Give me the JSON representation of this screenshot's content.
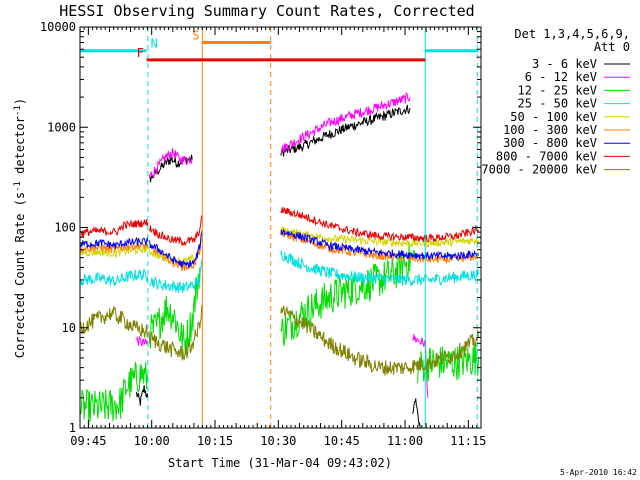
{
  "chart_data": {
    "type": "line",
    "title": "HESSI Observing Summary Count Rates, Corrected",
    "xlabel": "Start Time (31-Mar-04 09:43:02)",
    "ylabel": "Corrected Count Rate (s^-1 detector^-1)",
    "ylabel_main": "Corrected Count Rate (s",
    "ylabel_sup1": "-1",
    "ylabel_mid": " detector",
    "ylabel_sup2": "-1",
    "ylabel_end": ")",
    "yscale": "log",
    "ylim": [
      1,
      10000
    ],
    "xlim": [
      9.717,
      11.3
    ],
    "xticks": [
      {
        "t": 9.75,
        "label": "09:45"
      },
      {
        "t": 10.0,
        "label": "10:00"
      },
      {
        "t": 10.25,
        "label": "10:15"
      },
      {
        "t": 10.5,
        "label": "10:30"
      },
      {
        "t": 10.75,
        "label": "10:45"
      },
      {
        "t": 11.0,
        "label": "11:00"
      },
      {
        "t": 11.25,
        "label": "11:15"
      }
    ],
    "yticks": [
      {
        "v": 1,
        "label": "1"
      },
      {
        "v": 10,
        "label": "10"
      },
      {
        "v": 100,
        "label": "100"
      },
      {
        "v": 1000,
        "label": "1000"
      },
      {
        "v": 10000,
        "label": "10000"
      }
    ],
    "legend": {
      "header1": "Det 1,3,4,5,6,9,",
      "header2": "Att 0",
      "position": "right"
    },
    "flag_bars": [
      {
        "label": "N",
        "color": "#00e0e0",
        "segments": [
          [
            9.717,
            9.98
          ],
          [
            11.08,
            11.29
          ]
        ],
        "y": 5800
      },
      {
        "label": "S",
        "color": "#ff7f00",
        "segments": [
          [
            10.2,
            10.47
          ]
        ],
        "y": 7000
      },
      {
        "label": "F",
        "color": "#ee0000",
        "segments": [
          [
            9.98,
            11.08
          ]
        ],
        "y": 4700
      }
    ],
    "flag_marks": [
      {
        "label": "N",
        "t": 10.01,
        "color": "#00e0e0"
      },
      {
        "label": "S",
        "t": 10.175,
        "color": "#ff7f00"
      },
      {
        "label": "F",
        "t": 9.955,
        "color": "#ee0000"
      }
    ],
    "vlines": [
      {
        "t": 9.717,
        "color": "#00e0e0",
        "dash": false
      },
      {
        "t": 9.985,
        "color": "#00e0e0",
        "dash": true
      },
      {
        "t": 10.2,
        "color": "#ff7f00",
        "dash": false
      },
      {
        "t": 10.47,
        "color": "#ff7f00",
        "dash": true
      },
      {
        "t": 11.08,
        "color": "#00e0e0",
        "dash": false
      },
      {
        "t": 11.285,
        "color": "#00e0e0",
        "dash": true
      }
    ],
    "gap": [
      10.2,
      10.51
    ],
    "series": [
      {
        "name": "3 - 6 keV",
        "color": "#000000",
        "noise": 0.05,
        "segments": [
          [
            [
              9.94,
              2.2
            ],
            [
              9.955,
              1.8
            ],
            [
              9.97,
              2.5
            ],
            [
              9.985,
              2.0
            ]
          ],
          [
            [
              9.99,
              300
            ],
            [
              10.03,
              380
            ],
            [
              10.06,
              450
            ],
            [
              10.08,
              480
            ],
            [
              10.1,
              440
            ],
            [
              10.13,
              470
            ],
            [
              10.16,
              480
            ]
          ],
          [
            [
              10.51,
              560
            ],
            [
              10.6,
              650
            ],
            [
              10.7,
              850
            ],
            [
              10.8,
              1050
            ],
            [
              10.9,
              1250
            ],
            [
              10.98,
              1450
            ],
            [
              11.02,
              1550
            ]
          ],
          [
            [
              11.03,
              1.3
            ],
            [
              11.04,
              2.0
            ],
            [
              11.06,
              1.0
            ]
          ]
        ]
      },
      {
        "name": "6 - 12 keV",
        "color": "#ff00ff",
        "noise": 0.05,
        "segments": [
          [
            [
              9.94,
              7.5
            ],
            [
              9.97,
              7.0
            ],
            [
              9.985,
              7.0
            ]
          ],
          [
            [
              9.99,
              320
            ],
            [
              10.03,
              420
            ],
            [
              10.06,
              520
            ],
            [
              10.085,
              560
            ],
            [
              10.11,
              480
            ],
            [
              10.14,
              470
            ],
            [
              10.16,
              490
            ]
          ],
          [
            [
              10.51,
              600
            ],
            [
              10.6,
              800
            ],
            [
              10.7,
              1100
            ],
            [
              10.8,
              1350
            ],
            [
              10.9,
              1600
            ],
            [
              10.98,
              1850
            ],
            [
              11.02,
              2000
            ]
          ],
          [
            [
              11.03,
              8
            ],
            [
              11.05,
              7.5
            ],
            [
              11.08,
              7.0
            ],
            [
              11.09,
              2.0
            ]
          ]
        ]
      },
      {
        "name": "12 - 25 keV",
        "color": "#00dd00",
        "noise": 0.18,
        "segments": [
          [
            [
              9.72,
              1.6
            ],
            [
              9.8,
              1.6
            ],
            [
              9.86,
              1.7
            ],
            [
              9.88,
              1.8
            ],
            [
              9.9,
              2.6
            ],
            [
              9.93,
              3.0
            ],
            [
              9.96,
              3.5
            ],
            [
              9.985,
              3.0
            ]
          ],
          [
            [
              9.99,
              9
            ],
            [
              10.02,
              10
            ],
            [
              10.04,
              13
            ],
            [
              10.06,
              16
            ],
            [
              10.09,
              13
            ],
            [
              10.11,
              9
            ],
            [
              10.13,
              7
            ],
            [
              10.16,
              12
            ],
            [
              10.19,
              40
            ]
          ],
          [
            [
              10.51,
              9
            ],
            [
              10.6,
              14
            ],
            [
              10.7,
              20
            ],
            [
              10.8,
              25
            ],
            [
              10.9,
              30
            ],
            [
              10.96,
              35
            ],
            [
              11.0,
              45
            ],
            [
              11.04,
              50
            ]
          ],
          [
            [
              11.05,
              4
            ],
            [
              11.1,
              4.5
            ],
            [
              11.2,
              4.5
            ],
            [
              11.29,
              5
            ]
          ]
        ]
      },
      {
        "name": "25 - 50 keV",
        "color": "#00e0e0",
        "noise": 0.06,
        "segments": [
          [
            [
              9.72,
              30
            ],
            [
              9.8,
              31
            ],
            [
              9.86,
              29
            ],
            [
              9.9,
              32
            ],
            [
              9.95,
              34
            ],
            [
              9.985,
              33
            ]
          ],
          [
            [
              9.99,
              30
            ],
            [
              10.03,
              27
            ],
            [
              10.08,
              26
            ],
            [
              10.13,
              25
            ],
            [
              10.17,
              27
            ],
            [
              10.19,
              30
            ],
            [
              10.2,
              48
            ]
          ],
          [
            [
              10.51,
              55
            ],
            [
              10.6,
              42
            ],
            [
              10.7,
              35
            ],
            [
              10.8,
              32
            ],
            [
              10.9,
              31
            ],
            [
              11.0,
              30
            ],
            [
              11.1,
              30
            ],
            [
              11.2,
              32
            ],
            [
              11.29,
              34
            ]
          ]
        ]
      },
      {
        "name": "50 - 100 keV",
        "color": "#d4d400",
        "noise": 0.04,
        "segments": [
          [
            [
              9.72,
              56
            ],
            [
              9.8,
              57
            ],
            [
              9.86,
              55
            ],
            [
              9.89,
              58
            ],
            [
              9.95,
              60
            ],
            [
              9.985,
              61
            ]
          ],
          [
            [
              9.99,
              58
            ],
            [
              10.03,
              52
            ],
            [
              10.08,
              48
            ],
            [
              10.13,
              46
            ],
            [
              10.17,
              49
            ],
            [
              10.19,
              62
            ],
            [
              10.2,
              85
            ]
          ],
          [
            [
              10.51,
              95
            ],
            [
              10.6,
              85
            ],
            [
              10.7,
              78
            ],
            [
              10.8,
              75
            ],
            [
              10.9,
              72
            ],
            [
              11.0,
              70
            ],
            [
              11.1,
              70
            ],
            [
              11.2,
              72
            ],
            [
              11.29,
              75
            ]
          ]
        ]
      },
      {
        "name": "100 - 300 keV",
        "color": "#ff7f00",
        "noise": 0.04,
        "segments": [
          [
            [
              9.72,
              62
            ],
            [
              9.8,
              63
            ],
            [
              9.86,
              60
            ],
            [
              9.89,
              64
            ],
            [
              9.95,
              66
            ],
            [
              9.985,
              66
            ]
          ],
          [
            [
              9.99,
              62
            ],
            [
              10.03,
              55
            ],
            [
              10.08,
              45
            ],
            [
              10.13,
              40
            ],
            [
              10.17,
              43
            ],
            [
              10.19,
              60
            ],
            [
              10.2,
              90
            ]
          ],
          [
            [
              10.51,
              88
            ],
            [
              10.6,
              75
            ],
            [
              10.7,
              62
            ],
            [
              10.8,
              56
            ],
            [
              10.9,
              52
            ],
            [
              11.0,
              50
            ],
            [
              11.1,
              48
            ],
            [
              11.2,
              48
            ],
            [
              11.29,
              52
            ]
          ]
        ]
      },
      {
        "name": "300 - 800 keV",
        "color": "#0000ff",
        "noise": 0.04,
        "segments": [
          [
            [
              9.72,
              68
            ],
            [
              9.8,
              70
            ],
            [
              9.86,
              66
            ],
            [
              9.89,
              70
            ],
            [
              9.95,
              72
            ],
            [
              9.985,
              72
            ]
          ],
          [
            [
              9.99,
              68
            ],
            [
              10.03,
              60
            ],
            [
              10.08,
              48
            ],
            [
              10.13,
              42
            ],
            [
              10.17,
              45
            ],
            [
              10.19,
              65
            ],
            [
              10.2,
              95
            ]
          ],
          [
            [
              10.51,
              92
            ],
            [
              10.6,
              80
            ],
            [
              10.7,
              66
            ],
            [
              10.8,
              60
            ],
            [
              10.9,
              56
            ],
            [
              11.0,
              54
            ],
            [
              11.1,
              52
            ],
            [
              11.2,
              52
            ],
            [
              11.29,
              55
            ]
          ]
        ]
      },
      {
        "name": "800 - 7000 keV",
        "color": "#ee0000",
        "noise": 0.04,
        "segments": [
          [
            [
              9.72,
              88
            ],
            [
              9.78,
              92
            ],
            [
              9.86,
              90
            ],
            [
              9.89,
              105
            ],
            [
              9.95,
              110
            ],
            [
              9.985,
              112
            ]
          ],
          [
            [
              9.99,
              100
            ],
            [
              10.03,
              85
            ],
            [
              10.08,
              75
            ],
            [
              10.13,
              72
            ],
            [
              10.17,
              75
            ],
            [
              10.19,
              95
            ],
            [
              10.2,
              130
            ]
          ],
          [
            [
              10.51,
              150
            ],
            [
              10.6,
              130
            ],
            [
              10.7,
              105
            ],
            [
              10.8,
              90
            ],
            [
              10.9,
              82
            ],
            [
              11.0,
              80
            ],
            [
              11.1,
              78
            ],
            [
              11.2,
              82
            ],
            [
              11.29,
              95
            ]
          ]
        ]
      },
      {
        "name": "7000 - 20000 keV",
        "color": "#808000",
        "noise": 0.08,
        "segments": [
          [
            [
              9.72,
              10
            ],
            [
              9.78,
              12
            ],
            [
              9.84,
              14
            ],
            [
              9.89,
              12
            ],
            [
              9.93,
              10
            ],
            [
              9.985,
              9
            ]
          ],
          [
            [
              9.99,
              8
            ],
            [
              10.03,
              7
            ],
            [
              10.08,
              6
            ],
            [
              10.12,
              5.5
            ],
            [
              10.15,
              6
            ],
            [
              10.18,
              9
            ],
            [
              10.2,
              15
            ]
          ],
          [
            [
              10.51,
              15
            ],
            [
              10.6,
              11
            ],
            [
              10.7,
              7
            ],
            [
              10.8,
              5
            ],
            [
              10.9,
              4
            ],
            [
              11.0,
              4
            ],
            [
              11.1,
              4.5
            ],
            [
              11.2,
              5.5
            ],
            [
              11.29,
              8
            ]
          ]
        ]
      }
    ]
  },
  "footer_date": "5-Apr-2010 16:42"
}
